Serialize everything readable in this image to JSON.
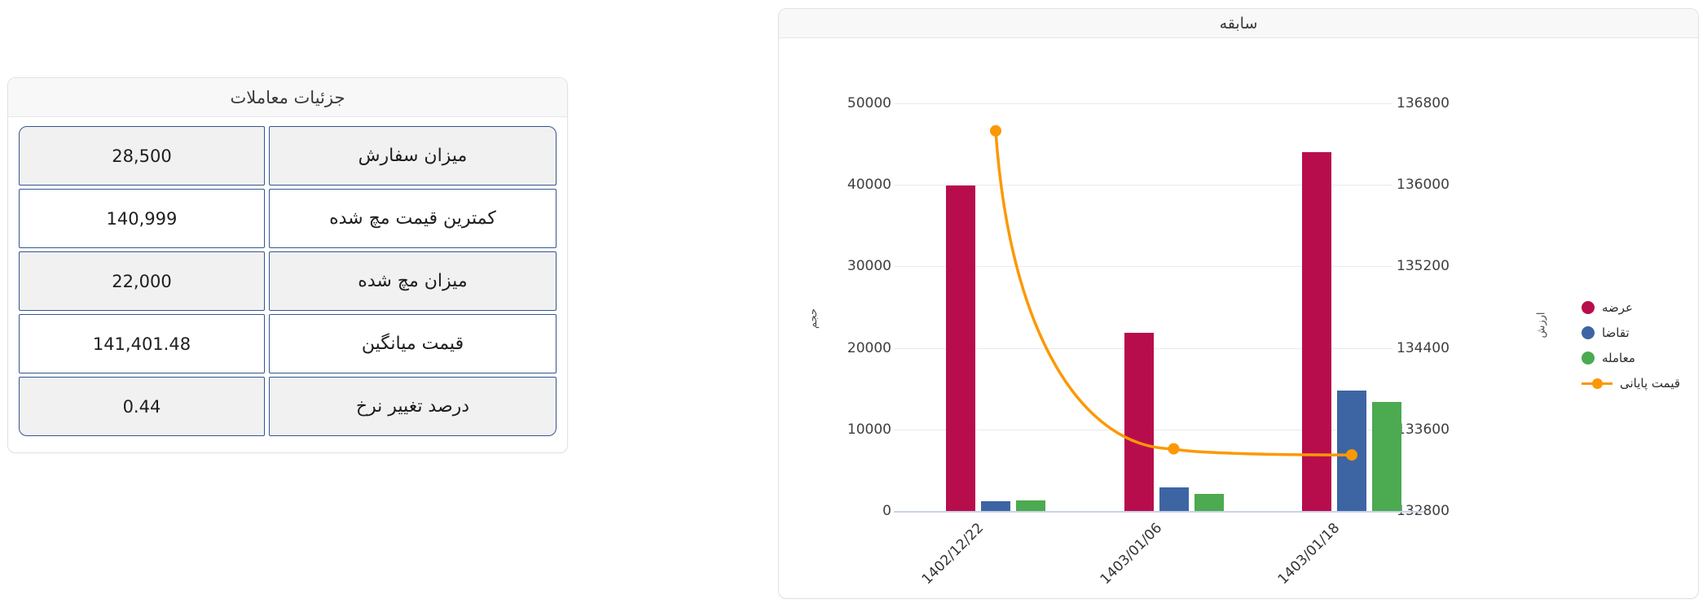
{
  "details_card": {
    "title": "جزئیات معاملات",
    "rows": [
      {
        "label": "میزان سفارش",
        "value": "28,500"
      },
      {
        "label": "کمترین قیمت مچ شده",
        "value": "140,999"
      },
      {
        "label": "میزان مچ شده",
        "value": "22,000"
      },
      {
        "label": "قیمت میانگین",
        "value": "141,401.48"
      },
      {
        "label": "درصد تغییر نرخ",
        "value": "0.44"
      }
    ]
  },
  "history_card": {
    "title": "سابقه"
  },
  "chart_data": {
    "type": "bar",
    "title": "سابقه",
    "categories": [
      "1402/12/22",
      "1403/01/06",
      "1403/01/18"
    ],
    "series": [
      {
        "name": "عرضه",
        "type": "bar",
        "axis": "left",
        "color": "#b80d4d",
        "values": [
          39900,
          21900,
          44000
        ]
      },
      {
        "name": "تقاضا",
        "type": "bar",
        "axis": "left",
        "color": "#3d65a3",
        "values": [
          1200,
          2900,
          14800
        ]
      },
      {
        "name": "معامله",
        "type": "bar",
        "axis": "left",
        "color": "#4caa50",
        "values": [
          1300,
          2100,
          13400
        ]
      },
      {
        "name": "قیمت پایانی",
        "type": "line",
        "axis": "right",
        "color": "#fc9803",
        "values": [
          136530,
          133410,
          133350
        ]
      }
    ],
    "y_left": {
      "title": "حجم",
      "min": 0,
      "max": 50000,
      "ticks": [
        "50000",
        "40000",
        "30000",
        "20000",
        "10000",
        "0"
      ]
    },
    "y_right": {
      "title": "ارزش",
      "min": 132800,
      "max": 136800,
      "ticks": [
        "136800",
        "136000",
        "135200",
        "134400",
        "133600",
        "132800"
      ]
    },
    "grid": true,
    "legend_position": "right"
  }
}
